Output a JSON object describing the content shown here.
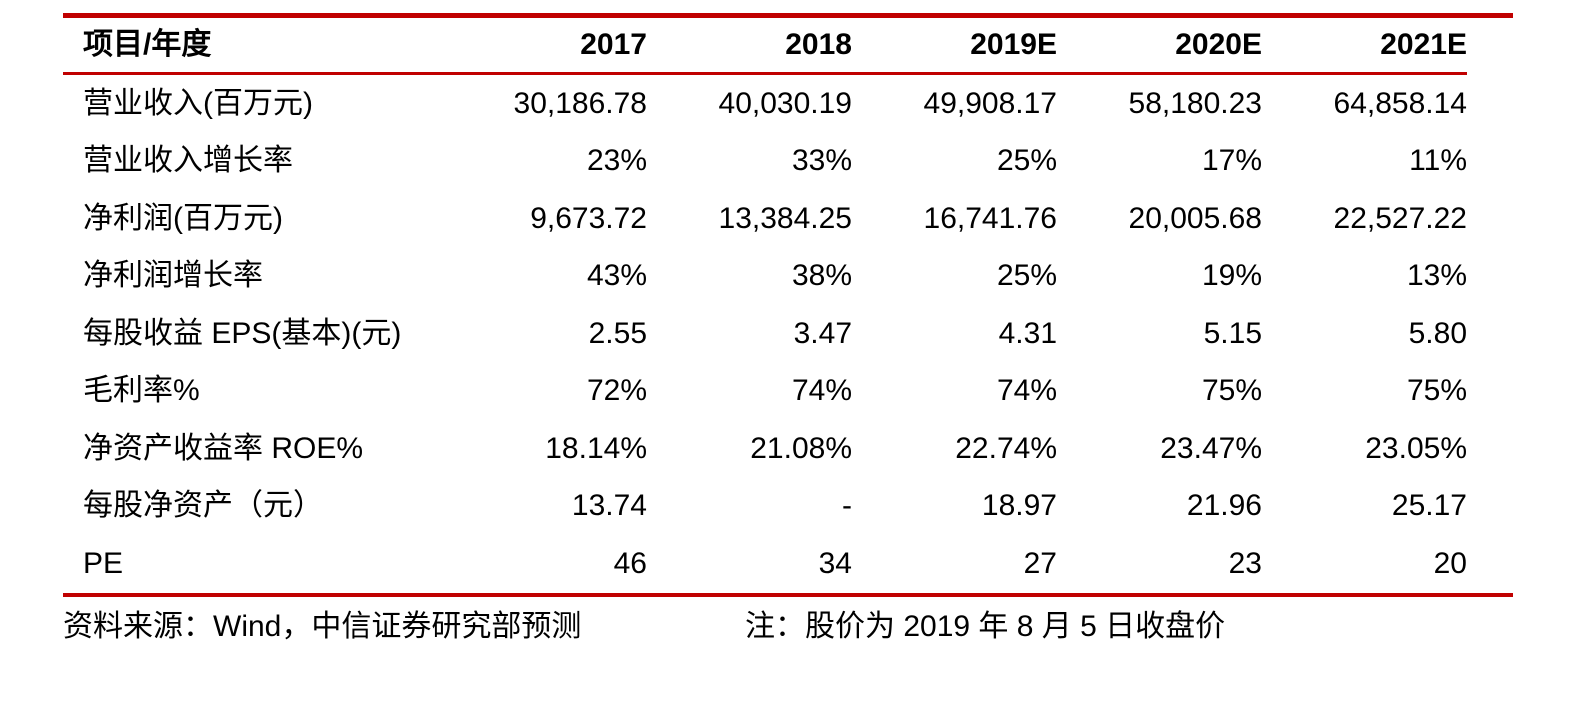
{
  "accent_color": "#C00000",
  "table": {
    "header": {
      "label": "项目/年度",
      "years": [
        "2017",
        "2018",
        "2019E",
        "2020E",
        "2021E"
      ]
    },
    "rows": [
      {
        "label": "营业收入(百万元)",
        "values": [
          "30,186.78",
          "40,030.19",
          "49,908.17",
          "58,180.23",
          "64,858.14"
        ]
      },
      {
        "label": "营业收入增长率",
        "values": [
          "23%",
          "33%",
          "25%",
          "17%",
          "11%"
        ]
      },
      {
        "label": "净利润(百万元)",
        "values": [
          "9,673.72",
          "13,384.25",
          "16,741.76",
          "20,005.68",
          "22,527.22"
        ]
      },
      {
        "label": "净利润增长率",
        "values": [
          "43%",
          "38%",
          "25%",
          "19%",
          "13%"
        ]
      },
      {
        "label": "每股收益 EPS(基本)(元)",
        "values": [
          "2.55",
          "3.47",
          "4.31",
          "5.15",
          "5.80"
        ]
      },
      {
        "label": "毛利率%",
        "values": [
          "72%",
          "74%",
          "74%",
          "75%",
          "75%"
        ]
      },
      {
        "label": "净资产收益率 ROE%",
        "values": [
          "18.14%",
          "21.08%",
          "22.74%",
          "23.47%",
          "23.05%"
        ]
      },
      {
        "label": "每股净资产（元）",
        "values": [
          "13.74",
          "-",
          "18.97",
          "21.96",
          "25.17"
        ]
      },
      {
        "label": "PE",
        "values": [
          "46",
          "34",
          "27",
          "23",
          "20"
        ]
      }
    ]
  },
  "footer": {
    "source": "资料来源：Wind，中信证券研究部预测",
    "note": "注：股价为 2019 年 8 月 5 日收盘价"
  }
}
